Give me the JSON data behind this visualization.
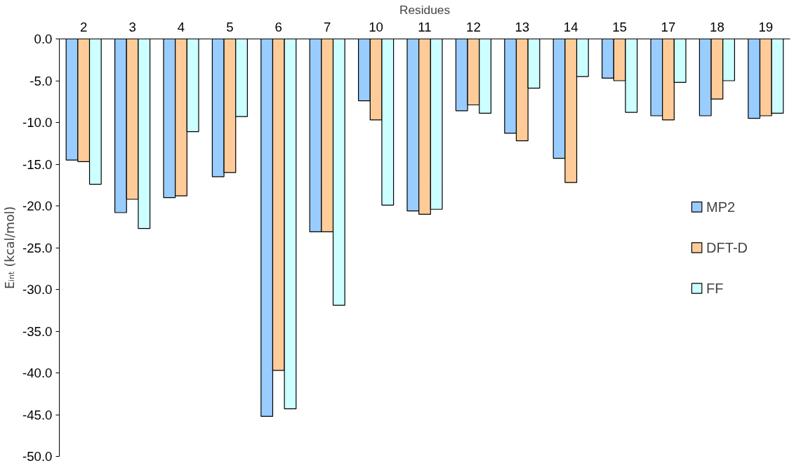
{
  "chart_data": {
    "type": "bar",
    "xlabel": "Residues",
    "ylabel": "Eᵢₙₜ (kcal/mol)",
    "categories": [
      "2",
      "3",
      "4",
      "5",
      "6",
      "7",
      "10",
      "11",
      "12",
      "13",
      "14",
      "15",
      "17",
      "18",
      "19"
    ],
    "series": [
      {
        "name": "MP2",
        "color": "#99ccff",
        "values": [
          -14.5,
          -20.8,
          -19.0,
          -16.5,
          -45.2,
          -23.1,
          -7.4,
          -20.6,
          -8.6,
          -11.3,
          -14.3,
          -4.7,
          -9.2,
          -9.2,
          -9.5
        ]
      },
      {
        "name": "DFT-D",
        "color": "#ffcc99",
        "values": [
          -14.7,
          -19.2,
          -18.8,
          -16.0,
          -39.7,
          -23.1,
          -9.7,
          -21.0,
          -7.9,
          -12.2,
          -17.2,
          -5.0,
          -9.7,
          -7.2,
          -9.2
        ]
      },
      {
        "name": "FF",
        "color": "#ccffff",
        "values": [
          -17.4,
          -22.7,
          -11.1,
          -9.3,
          -44.3,
          -31.9,
          -19.9,
          -20.4,
          -8.9,
          -5.9,
          -4.5,
          -8.8,
          -5.2,
          -5.0,
          -8.9
        ]
      }
    ],
    "ylim": [
      -50,
      0
    ],
    "yticks": [
      {
        "value": 0,
        "label": "0.0"
      },
      {
        "value": -5,
        "label": "-5.0"
      },
      {
        "value": -10,
        "label": "-10.0"
      },
      {
        "value": -15,
        "label": "-15.0"
      },
      {
        "value": -20,
        "label": "-20.0"
      },
      {
        "value": -25,
        "label": "-25.0"
      },
      {
        "value": -30,
        "label": "-30.0"
      },
      {
        "value": -35,
        "label": "-35.0"
      },
      {
        "value": -40,
        "label": "-40.0"
      },
      {
        "value": -45,
        "label": "-45.0"
      },
      {
        "value": -50,
        "label": "-50.0"
      }
    ],
    "legend": "right"
  }
}
